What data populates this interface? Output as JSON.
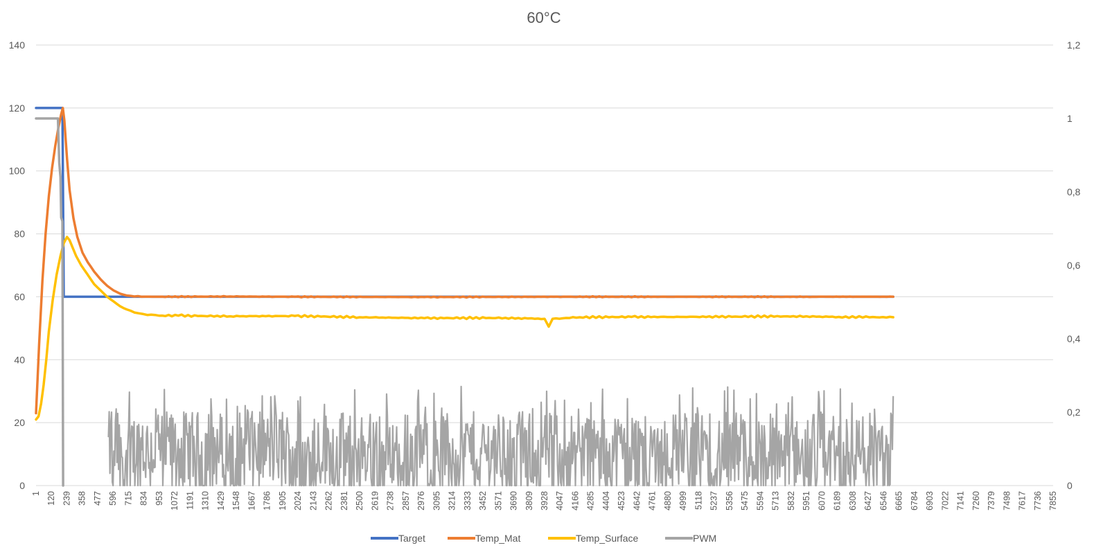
{
  "chart_data": {
    "type": "line",
    "title": "60°C",
    "xlabel": "",
    "ylabel": "",
    "y_left": {
      "range": [
        0,
        140
      ],
      "ticks": [
        "0",
        "20",
        "40",
        "60",
        "80",
        "100",
        "120",
        "140"
      ]
    },
    "y_right": {
      "range": [
        0,
        1.2
      ],
      "ticks": [
        "0",
        "0,2",
        "0,4",
        "0,6",
        "0,8",
        "1",
        "1,2"
      ]
    },
    "x_range": [
      1,
      7855
    ],
    "x_ticks": [
      1,
      120,
      239,
      358,
      477,
      596,
      715,
      834,
      953,
      1072,
      1191,
      1310,
      1429,
      1548,
      1667,
      1786,
      1905,
      2024,
      2143,
      2262,
      2381,
      2500,
      2619,
      2738,
      2857,
      2976,
      3095,
      3214,
      3333,
      3452,
      3571,
      3690,
      3809,
      3928,
      4047,
      4166,
      4285,
      4404,
      4523,
      4642,
      4761,
      4880,
      4999,
      5118,
      5237,
      5356,
      5475,
      5594,
      5713,
      5832,
      5951,
      6070,
      6189,
      6308,
      6427,
      6546,
      6665,
      6784,
      6903,
      7022,
      7141,
      7260,
      7379,
      7498,
      7617,
      7736,
      7855
    ],
    "grid": true,
    "legend_position": "bottom",
    "series": [
      {
        "name": "Target",
        "axis": "left",
        "color": "#4472C4",
        "points": [
          [
            1,
            120
          ],
          [
            205,
            120
          ],
          [
            215,
            60
          ],
          [
            6620,
            60
          ]
        ]
      },
      {
        "name": "Temp_Mat",
        "axis": "left",
        "color": "#ED7D31",
        "points": [
          [
            1,
            23
          ],
          [
            25,
            45
          ],
          [
            50,
            65
          ],
          [
            75,
            80
          ],
          [
            100,
            92
          ],
          [
            125,
            101
          ],
          [
            150,
            108
          ],
          [
            175,
            114
          ],
          [
            195,
            118
          ],
          [
            208,
            120
          ],
          [
            220,
            116
          ],
          [
            240,
            104
          ],
          [
            260,
            94
          ],
          [
            290,
            85
          ],
          [
            320,
            79
          ],
          [
            360,
            74
          ],
          [
            400,
            71
          ],
          [
            450,
            68
          ],
          [
            500,
            65.5
          ],
          [
            550,
            63.5
          ],
          [
            600,
            62
          ],
          [
            650,
            61
          ],
          [
            700,
            60.4
          ],
          [
            760,
            60.1
          ],
          [
            900,
            60
          ],
          [
            1500,
            60.1
          ],
          [
            2000,
            60
          ],
          [
            3000,
            59.9
          ],
          [
            4000,
            60
          ],
          [
            5000,
            60
          ],
          [
            6000,
            60
          ],
          [
            6620,
            60
          ]
        ]
      },
      {
        "name": "Temp_Surface",
        "axis": "left",
        "color": "#FFC000",
        "points": [
          [
            1,
            21
          ],
          [
            20,
            22
          ],
          [
            40,
            26
          ],
          [
            60,
            32
          ],
          [
            80,
            40
          ],
          [
            100,
            49
          ],
          [
            130,
            59
          ],
          [
            160,
            67
          ],
          [
            190,
            73
          ],
          [
            215,
            77
          ],
          [
            240,
            79
          ],
          [
            260,
            78
          ],
          [
            280,
            76
          ],
          [
            310,
            73
          ],
          [
            350,
            70
          ],
          [
            400,
            67
          ],
          [
            450,
            64
          ],
          [
            500,
            62
          ],
          [
            550,
            60
          ],
          [
            600,
            58.5
          ],
          [
            650,
            57
          ],
          [
            700,
            56
          ],
          [
            760,
            55
          ],
          [
            830,
            54.5
          ],
          [
            950,
            54
          ],
          [
            1100,
            54
          ],
          [
            1500,
            53.8
          ],
          [
            2000,
            53.9
          ],
          [
            2500,
            53.5
          ],
          [
            3000,
            53.2
          ],
          [
            3500,
            53.3
          ],
          [
            3800,
            53.1
          ],
          [
            3928,
            53
          ],
          [
            3960,
            50.5
          ],
          [
            3990,
            53
          ],
          [
            4200,
            53.5
          ],
          [
            4600,
            53.6
          ],
          [
            5000,
            53.6
          ],
          [
            5400,
            53.7
          ],
          [
            5800,
            53.8
          ],
          [
            6200,
            53.6
          ],
          [
            6620,
            53.5
          ]
        ]
      },
      {
        "name": "PWM",
        "axis": "right",
        "color": "#A5A5A5",
        "points": [
          [
            1,
            1
          ],
          [
            170,
            1
          ],
          [
            180,
            0.88
          ],
          [
            190,
            0.84
          ],
          [
            195,
            0.73
          ],
          [
            205,
            0.72
          ],
          [
            210,
            0
          ]
        ],
        "oscillation": {
          "x_start": 560,
          "x_end": 6620,
          "min": 0,
          "mean": 0.1,
          "max": 0.27
        }
      }
    ]
  }
}
